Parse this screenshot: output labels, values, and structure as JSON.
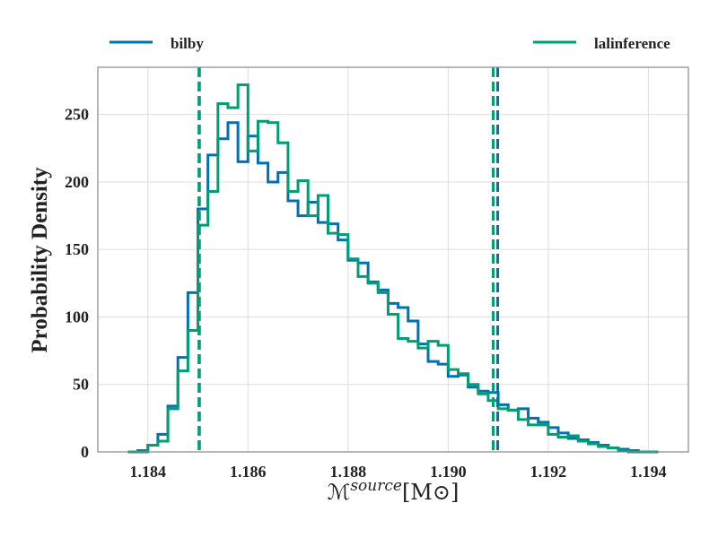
{
  "chart_data": {
    "type": "histogram",
    "xlabel_parts": {
      "base": "ℳ",
      "sup": "source",
      "unit": "[M⊙]"
    },
    "ylabel": "Probability Density",
    "xlim": [
      1.183,
      1.1948
    ],
    "ylim": [
      0,
      285
    ],
    "xticks": [
      1.184,
      1.186,
      1.188,
      1.19,
      1.192,
      1.194
    ],
    "xtick_labels": [
      "1.184",
      "1.186",
      "1.188",
      "1.190",
      "1.192",
      "1.194"
    ],
    "yticks": [
      0,
      50,
      100,
      150,
      200,
      250
    ],
    "ytick_labels": [
      "0",
      "50",
      "100",
      "150",
      "200",
      "250"
    ],
    "grid": true,
    "legend_placement": "top, above plot",
    "series": [
      {
        "name": "bilby",
        "color": "#0072b2",
        "bin_edges": [
          1.1836,
          1.1838,
          1.184,
          1.1842,
          1.1844,
          1.1846,
          1.1848,
          1.185,
          1.1852,
          1.1854,
          1.1856,
          1.1858,
          1.186,
          1.1862,
          1.1864,
          1.1866,
          1.1868,
          1.187,
          1.1872,
          1.1874,
          1.1876,
          1.1878,
          1.188,
          1.1882,
          1.1884,
          1.1886,
          1.1888,
          1.189,
          1.1892,
          1.1894,
          1.1896,
          1.1898,
          1.19,
          1.1902,
          1.1904,
          1.1906,
          1.1908,
          1.191,
          1.1912,
          1.1914,
          1.1916,
          1.1918,
          1.192,
          1.1922,
          1.1924,
          1.1926,
          1.1928,
          1.193,
          1.1932,
          1.1934,
          1.1936,
          1.1938,
          1.194,
          1.1942
        ],
        "density": [
          0,
          1,
          5,
          13,
          34,
          70,
          118,
          180,
          220,
          232,
          244,
          215,
          234,
          214,
          200,
          207,
          186,
          175,
          185,
          170,
          169,
          157,
          142,
          140,
          126,
          120,
          110,
          107,
          97,
          80,
          67,
          65,
          56,
          57,
          48,
          45,
          44,
          35,
          31,
          32,
          25,
          22,
          18,
          14,
          10,
          9,
          7,
          5,
          3,
          2,
          1,
          0,
          0
        ]
      },
      {
        "name": "lalinference",
        "color": "#009e73",
        "bin_edges": [
          1.1836,
          1.1838,
          1.184,
          1.1842,
          1.1844,
          1.1846,
          1.1848,
          1.185,
          1.1852,
          1.1854,
          1.1856,
          1.1858,
          1.186,
          1.1862,
          1.1864,
          1.1866,
          1.1868,
          1.187,
          1.1872,
          1.1874,
          1.1876,
          1.1878,
          1.188,
          1.1882,
          1.1884,
          1.1886,
          1.1888,
          1.189,
          1.1892,
          1.1894,
          1.1896,
          1.1898,
          1.19,
          1.1902,
          1.1904,
          1.1906,
          1.1908,
          1.191,
          1.1912,
          1.1914,
          1.1916,
          1.1918,
          1.192,
          1.1922,
          1.1924,
          1.1926,
          1.1928,
          1.193,
          1.1932,
          1.1934,
          1.1936,
          1.1938,
          1.194,
          1.1942
        ],
        "density": [
          0,
          0,
          5,
          8,
          32,
          60,
          90,
          168,
          193,
          258,
          255,
          272,
          223,
          245,
          244,
          229,
          193,
          201,
          175,
          190,
          162,
          161,
          143,
          130,
          125,
          118,
          102,
          84,
          82,
          77,
          82,
          79,
          61,
          58,
          50,
          43,
          38,
          32,
          31,
          24,
          20,
          20,
          13,
          11,
          12,
          8,
          6,
          4,
          3,
          1,
          0,
          0,
          0
        ]
      }
    ],
    "vlines": [
      {
        "series": "bilby",
        "x": 1.18503,
        "color": "#0072b2",
        "style": "dashed"
      },
      {
        "series": "lalinference",
        "x": 1.18502,
        "color": "#009e73",
        "style": "dashed"
      },
      {
        "series": "bilby",
        "x": 1.19099,
        "color": "#0072b2",
        "style": "dashed"
      },
      {
        "series": "lalinference",
        "x": 1.1909,
        "color": "#009e73",
        "style": "dashed"
      }
    ]
  }
}
